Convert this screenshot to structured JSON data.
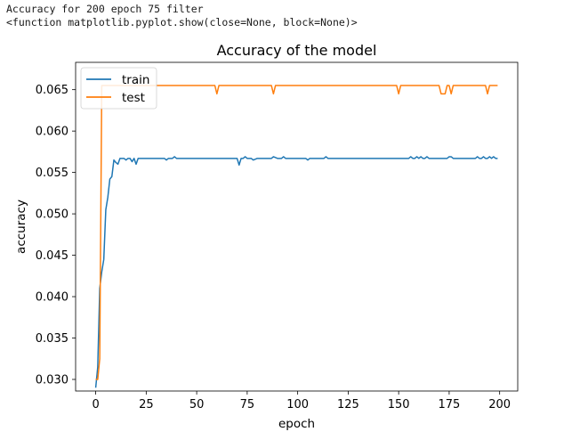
{
  "console": {
    "line1": "Accuracy for 200 epoch 75 filter",
    "line2": "<function matplotlib.pyplot.show(close=None, block=None)>"
  },
  "chart_data": {
    "type": "line",
    "title": "Accuracy of the model",
    "xlabel": "epoch",
    "ylabel": "accuracy",
    "xlim": [
      -9.95,
      208.95
    ],
    "ylim": [
      0.0286,
      0.0683
    ],
    "xticks": [
      0,
      25,
      50,
      75,
      100,
      125,
      150,
      175,
      200
    ],
    "yticks": [
      0.03,
      0.035,
      0.04,
      0.045,
      0.05,
      0.055,
      0.06,
      0.065
    ],
    "ytick_labels": [
      "0.030",
      "0.035",
      "0.040",
      "0.045",
      "0.050",
      "0.055",
      "0.060",
      "0.065"
    ],
    "legend": {
      "placement": "top-left",
      "entries": [
        "train",
        "test"
      ]
    },
    "grid": false,
    "colors": {
      "train": "#1f77b4",
      "test": "#ff7f0e"
    },
    "series": [
      {
        "name": "train",
        "x": [
          0,
          1,
          2,
          3,
          4,
          5,
          6,
          7,
          8,
          9,
          10,
          11,
          12,
          13,
          14,
          15,
          16,
          17,
          18,
          19,
          20,
          21,
          22,
          25,
          30,
          34,
          35,
          36,
          38,
          39,
          40,
          45,
          50,
          55,
          60,
          65,
          70,
          71,
          72,
          73,
          74,
          75,
          76,
          77,
          78,
          80,
          85,
          87,
          88,
          90,
          92,
          93,
          94,
          95,
          100,
          104,
          105,
          106,
          110,
          113,
          114,
          115,
          120,
          125,
          130,
          135,
          140,
          145,
          150,
          155,
          156,
          157,
          158,
          159,
          160,
          161,
          162,
          163,
          164,
          165,
          170,
          174,
          175,
          176,
          177,
          178,
          180,
          185,
          188,
          189,
          190,
          191,
          192,
          193,
          194,
          195,
          196,
          197,
          198,
          199
        ],
        "values": [
          0.029,
          0.0315,
          0.041,
          0.043,
          0.0445,
          0.0505,
          0.052,
          0.0542,
          0.0545,
          0.0565,
          0.0562,
          0.056,
          0.0567,
          0.0567,
          0.0567,
          0.0565,
          0.0567,
          0.0567,
          0.0563,
          0.0567,
          0.056,
          0.0567,
          0.0567,
          0.0567,
          0.0567,
          0.0567,
          0.0565,
          0.0567,
          0.0567,
          0.0569,
          0.0567,
          0.0567,
          0.0567,
          0.0567,
          0.0567,
          0.0567,
          0.0567,
          0.0559,
          0.0567,
          0.0567,
          0.0569,
          0.0567,
          0.0567,
          0.0567,
          0.0565,
          0.0567,
          0.0567,
          0.0567,
          0.0569,
          0.0567,
          0.0567,
          0.0569,
          0.0567,
          0.0567,
          0.0567,
          0.0567,
          0.0565,
          0.0567,
          0.0567,
          0.0567,
          0.0569,
          0.0567,
          0.0567,
          0.0567,
          0.0567,
          0.0567,
          0.0567,
          0.0567,
          0.0567,
          0.0567,
          0.0569,
          0.0567,
          0.0567,
          0.0569,
          0.0567,
          0.0569,
          0.0567,
          0.0567,
          0.0569,
          0.0567,
          0.0567,
          0.0567,
          0.0569,
          0.0569,
          0.0567,
          0.0567,
          0.0567,
          0.0567,
          0.0567,
          0.0569,
          0.0567,
          0.0567,
          0.0569,
          0.0567,
          0.0567,
          0.0569,
          0.0567,
          0.0569,
          0.0567,
          0.0567
        ]
      },
      {
        "name": "test",
        "x": [
          0,
          1,
          2,
          3,
          4,
          5,
          7,
          8,
          10,
          15,
          20,
          25,
          30,
          35,
          40,
          45,
          50,
          55,
          59,
          60,
          61,
          65,
          70,
          75,
          80,
          87,
          88,
          89,
          95,
          100,
          110,
          120,
          130,
          140,
          149,
          150,
          151,
          155,
          160,
          165,
          170,
          171,
          172,
          173,
          174,
          175,
          176,
          177,
          178,
          180,
          185,
          190,
          193,
          194,
          195,
          196,
          197,
          198,
          199
        ],
        "values": [
          0.03,
          0.03,
          0.0325,
          0.0655,
          0.0655,
          0.0655,
          0.0655,
          0.0655,
          0.0655,
          0.0655,
          0.0655,
          0.0655,
          0.0655,
          0.0655,
          0.0655,
          0.0655,
          0.0655,
          0.0655,
          0.0655,
          0.0645,
          0.0655,
          0.0655,
          0.0655,
          0.0655,
          0.0655,
          0.0655,
          0.0645,
          0.0655,
          0.0655,
          0.0655,
          0.0655,
          0.0655,
          0.0655,
          0.0655,
          0.0655,
          0.0645,
          0.0655,
          0.0655,
          0.0655,
          0.0655,
          0.0655,
          0.0645,
          0.0645,
          0.0645,
          0.0655,
          0.0655,
          0.0645,
          0.0655,
          0.0655,
          0.0655,
          0.0655,
          0.0655,
          0.0655,
          0.0645,
          0.0655,
          0.0655,
          0.0655,
          0.0655,
          0.0655
        ]
      }
    ]
  }
}
